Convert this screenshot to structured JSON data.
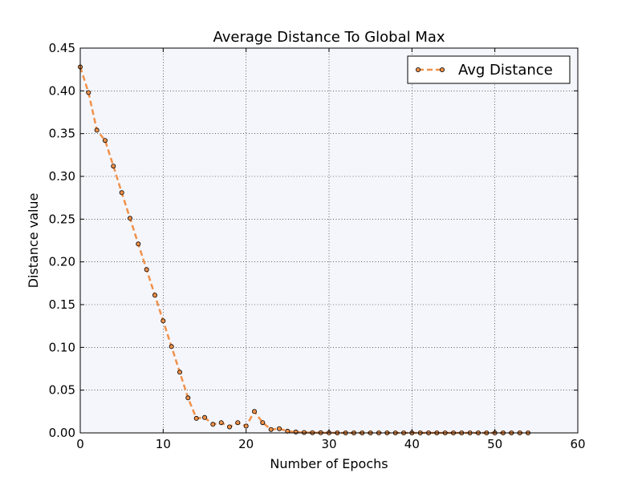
{
  "chart_data": {
    "type": "line",
    "title": "Average Distance To Global Max",
    "xlabel": "Number of Epochs",
    "ylabel": "Distance value",
    "xlim": [
      0,
      60
    ],
    "ylim": [
      0,
      0.45
    ],
    "xticks": [
      0,
      10,
      20,
      30,
      40,
      50,
      60
    ],
    "xtick_labels": [
      "0",
      "10",
      "20",
      "30",
      "40",
      "50",
      "60"
    ],
    "yticks": [
      0,
      0.05,
      0.1,
      0.15,
      0.2,
      0.25,
      0.3,
      0.35,
      0.4,
      0.45
    ],
    "ytick_labels": [
      "0.00",
      "0.05",
      "0.10",
      "0.15",
      "0.20",
      "0.25",
      "0.30",
      "0.35",
      "0.40",
      "0.45"
    ],
    "grid": true,
    "legend_position": "top-right",
    "plot_background": "#f5f6fb",
    "series": [
      {
        "name": "Avg Distance",
        "line_color": "#f0914a",
        "line_style": "dashed",
        "marker": "circle",
        "x": [
          0,
          1,
          2,
          3,
          4,
          5,
          6,
          7,
          8,
          9,
          10,
          11,
          12,
          13,
          14,
          15,
          16,
          17,
          18,
          19,
          20,
          21,
          22,
          23,
          24,
          25,
          26,
          27,
          28,
          29,
          30,
          31,
          32,
          33,
          34,
          35,
          36,
          37,
          38,
          39,
          40,
          41,
          42,
          43,
          44,
          45,
          46,
          47,
          48,
          49,
          50,
          51,
          52,
          53,
          54
        ],
        "values": [
          0.428,
          0.398,
          0.354,
          0.342,
          0.312,
          0.281,
          0.251,
          0.221,
          0.191,
          0.161,
          0.131,
          0.101,
          0.071,
          0.041,
          0.017,
          0.018,
          0.01,
          0.012,
          0.007,
          0.012,
          0.008,
          0.025,
          0.012,
          0.004,
          0.005,
          0.002,
          0.001,
          0.0005,
          0.0003,
          0.0002,
          0.0001,
          0,
          0,
          0,
          0,
          0,
          0,
          0,
          0,
          0,
          0,
          0,
          0,
          0,
          0,
          0,
          0,
          0,
          0,
          0,
          0,
          0,
          0,
          0,
          0
        ]
      }
    ]
  }
}
